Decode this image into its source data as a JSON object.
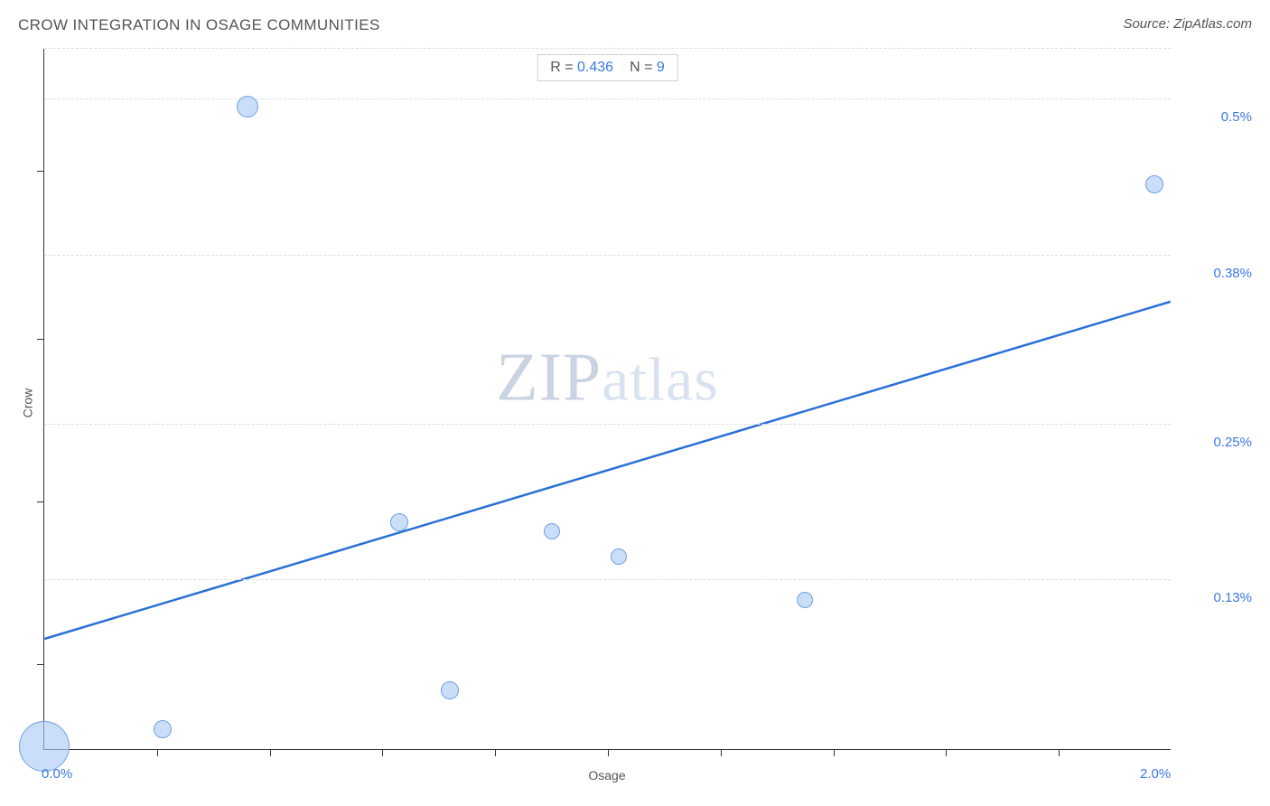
{
  "header": {
    "title": "CROW INTEGRATION IN OSAGE COMMUNITIES",
    "source": "Source: ZipAtlas.com"
  },
  "chart": {
    "type": "scatter",
    "x_label": "Osage",
    "y_label": "Crow",
    "xlim": [
      0.0,
      2.0
    ],
    "ylim": [
      0.0,
      0.54
    ],
    "x_range_labels": {
      "min": "0.0%",
      "max": "2.0%"
    },
    "y_ticks": [
      {
        "value": 0.13,
        "label": "0.13%"
      },
      {
        "value": 0.25,
        "label": "0.25%"
      },
      {
        "value": 0.38,
        "label": "0.38%"
      },
      {
        "value": 0.5,
        "label": "0.5%"
      }
    ],
    "x_tick_positions": [
      0.2,
      0.4,
      0.6,
      0.8,
      1.0,
      1.2,
      1.4,
      1.6,
      1.8
    ],
    "y_minor_tick_positions": [
      0.065,
      0.19,
      0.315,
      0.445
    ],
    "grid_color": "#dddddd",
    "axis_color": "#333333",
    "background_color": "#ffffff",
    "trend_line": {
      "color": "#2b6fd6",
      "width": 2.5,
      "x1": 0.0,
      "y1": 0.085,
      "x2": 2.0,
      "y2": 0.345
    },
    "points": [
      {
        "x": 0.0,
        "y": 0.002,
        "r": 28
      },
      {
        "x": 0.21,
        "y": 0.015,
        "r": 10
      },
      {
        "x": 0.36,
        "y": 0.495,
        "r": 12
      },
      {
        "x": 0.63,
        "y": 0.175,
        "r": 10
      },
      {
        "x": 0.72,
        "y": 0.045,
        "r": 10
      },
      {
        "x": 0.9,
        "y": 0.168,
        "r": 9
      },
      {
        "x": 1.02,
        "y": 0.148,
        "r": 9
      },
      {
        "x": 1.35,
        "y": 0.115,
        "r": 9
      },
      {
        "x": 1.97,
        "y": 0.435,
        "r": 10
      }
    ],
    "point_fill": "rgba(174,205,247,0.65)",
    "point_stroke": "#6fa1e0",
    "stats": {
      "r_label": "R =",
      "r_value": "0.436",
      "n_label": "N =",
      "n_value": "9"
    },
    "watermark": {
      "big": "ZIP",
      "small": "atlas"
    },
    "tick_label_color": "#3b78e7",
    "label_fontsize": 14,
    "title_fontsize": 17
  }
}
